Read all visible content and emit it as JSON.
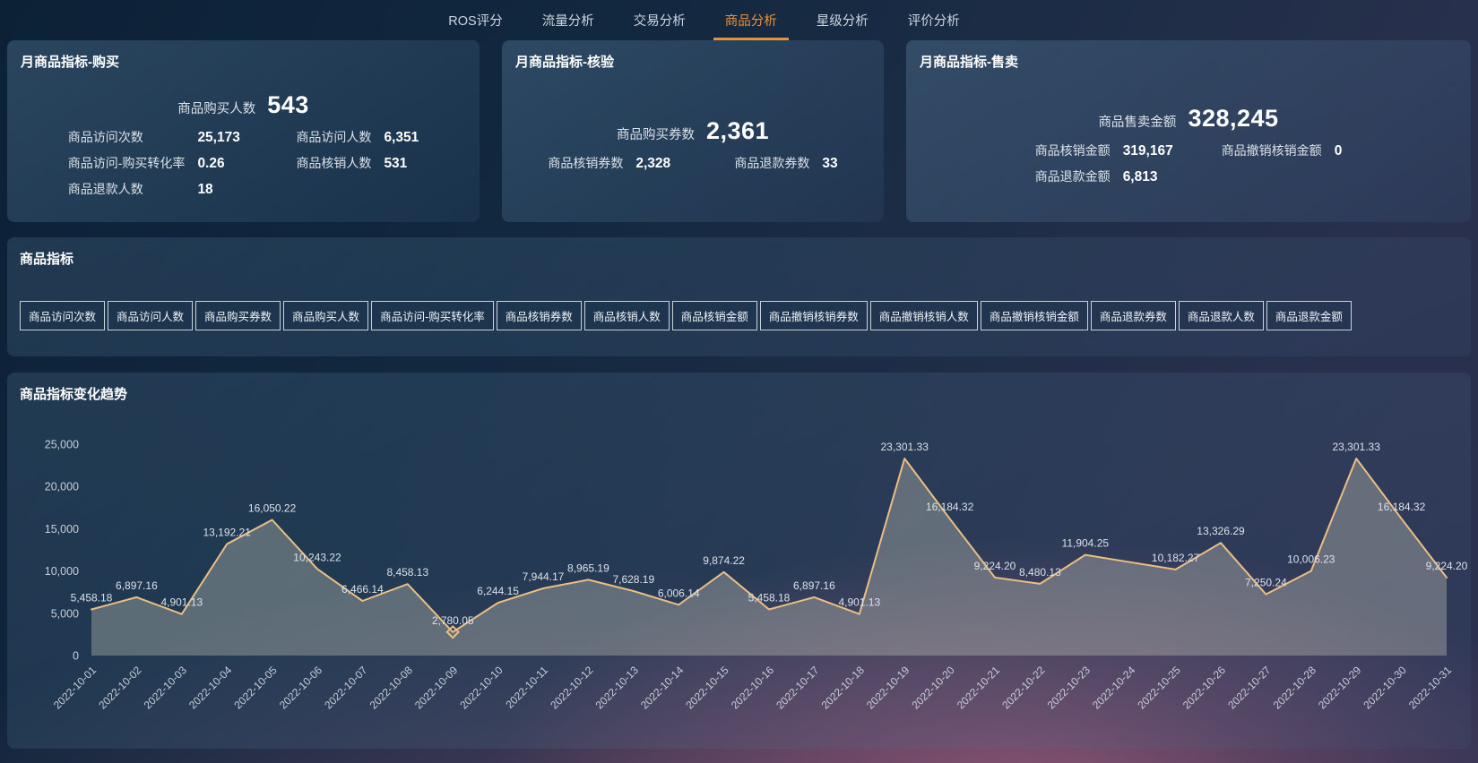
{
  "nav": {
    "tabs": [
      {
        "id": "ros-score",
        "label": "ROS评分",
        "active": false
      },
      {
        "id": "traffic-analysis",
        "label": "流量分析",
        "active": false
      },
      {
        "id": "transaction-analysis",
        "label": "交易分析",
        "active": false
      },
      {
        "id": "product-analysis",
        "label": "商品分析",
        "active": true
      },
      {
        "id": "star-analysis",
        "label": "星级分析",
        "active": false
      },
      {
        "id": "review-analysis",
        "label": "评价分析",
        "active": false
      }
    ]
  },
  "cards": [
    {
      "id": "card-monthly-metrics-purchase",
      "title": "月商品指标-购买",
      "primary": {
        "label": "商品购买人数",
        "value": "543"
      },
      "rows": [
        [
          {
            "label": "商品访问次数",
            "value": "25,173"
          },
          {
            "label": "商品访问人数",
            "value": "6,351"
          }
        ],
        [
          {
            "label": "商品访问-购买转化率",
            "value": "0.26"
          },
          {
            "label": "商品核销人数",
            "value": "531"
          }
        ],
        [
          {
            "label": "商品退款人数",
            "value": "18"
          }
        ]
      ]
    },
    {
      "id": "card-monthly-metrics-verification",
      "title": "月商品指标-核验",
      "primary": {
        "label": "商品购买券数",
        "value": "2,361"
      },
      "rows": [
        [
          {
            "label": "商品核销券数",
            "value": "2,328"
          },
          {
            "label": "商品退款券数",
            "value": "33"
          }
        ]
      ]
    },
    {
      "id": "card-monthly-metrics-sales",
      "title": "月商品指标-售卖",
      "primary": {
        "label": "商品售卖金额",
        "value": "328,245"
      },
      "rows": [
        [
          {
            "label": "商品核销金额",
            "value": "319,167"
          },
          {
            "label": "商品撤销核销金额",
            "value": "0"
          }
        ],
        [
          {
            "label": "商品退款金额",
            "value": "6,813"
          }
        ]
      ]
    }
  ],
  "metrics_panel": {
    "title": "商品指标",
    "buttons": [
      "商品访问次数",
      "商品访问人数",
      "商品购买券数",
      "商品购买人数",
      "商品访问-购买转化率",
      "商品核销券数",
      "商品核销人数",
      "商品核销金额",
      "商品撤销核销券数",
      "商品撤销核销人数",
      "商品撤销核销金额",
      "商品退款券数",
      "商品退款人数",
      "商品退款金额"
    ]
  },
  "trend_panel": {
    "title": "商品指标变化趋势"
  },
  "chart_data": {
    "type": "line",
    "title": "商品指标变化趋势",
    "x": [
      "2022-10-01",
      "2022-10-02",
      "2022-10-03",
      "2022-10-04",
      "2022-10-05",
      "2022-10-06",
      "2022-10-07",
      "2022-10-08",
      "2022-10-09",
      "2022-10-10",
      "2022-10-11",
      "2022-10-12",
      "2022-10-13",
      "2022-10-14",
      "2022-10-15",
      "2022-10-16",
      "2022-10-17",
      "2022-10-18",
      "2022-10-19",
      "2022-10-20",
      "2022-10-21",
      "2022-10-22",
      "2022-10-23",
      "2022-10-24",
      "2022-10-25",
      "2022-10-26",
      "2022-10-27",
      "2022-10-28",
      "2022-10-29",
      "2022-10-30",
      "2022-10-31"
    ],
    "values": [
      5458.18,
      6897.16,
      4901.13,
      13192.21,
      16050.22,
      10243.22,
      6466.14,
      8458.13,
      2780.05,
      6244.15,
      7944.17,
      8965.19,
      7628.19,
      6006.14,
      9874.22,
      5458.18,
      6897.16,
      4901.13,
      23301.33,
      16184.32,
      9224.2,
      8480.13,
      11904.25,
      11043.26,
      10182.27,
      13326.29,
      7250.24,
      10006.23,
      23301.33,
      16184.32,
      9224.2
    ],
    "point_labels": [
      "5,458.18",
      "6,897.16",
      "4,901.13",
      "13,192.21",
      "16,050.22",
      "10,243.22",
      "6,466.14",
      "8,458.13",
      "2,780.05",
      "6,244.15",
      "7,944.17",
      "8,965.19",
      "7,628.19",
      "6,006.14",
      "9,874.22",
      "5,458.18",
      "6,897.16",
      "4,901.13",
      "23,301.33",
      "16,184.32",
      "9,224.20",
      "8,480.13",
      "11,904.25",
      "",
      "10,182.27",
      "13,326.29",
      "7,250.24",
      "10,006.23",
      "23,301.33",
      "16,184.32",
      "9,224.20"
    ],
    "ylim": [
      0,
      25000
    ],
    "yticks": [
      0,
      5000,
      10000,
      15000,
      20000,
      25000
    ],
    "ytick_labels": [
      "0",
      "5,000",
      "10,000",
      "15,000",
      "20,000",
      "25,000"
    ],
    "grid": false,
    "legend": false,
    "xlabel_rotation": -45,
    "marker_date": "2022-10-09",
    "line_color": "#ecbe82",
    "area_color": "rgba(207,208,190,0.34)",
    "accent_color": "#e8913d"
  }
}
